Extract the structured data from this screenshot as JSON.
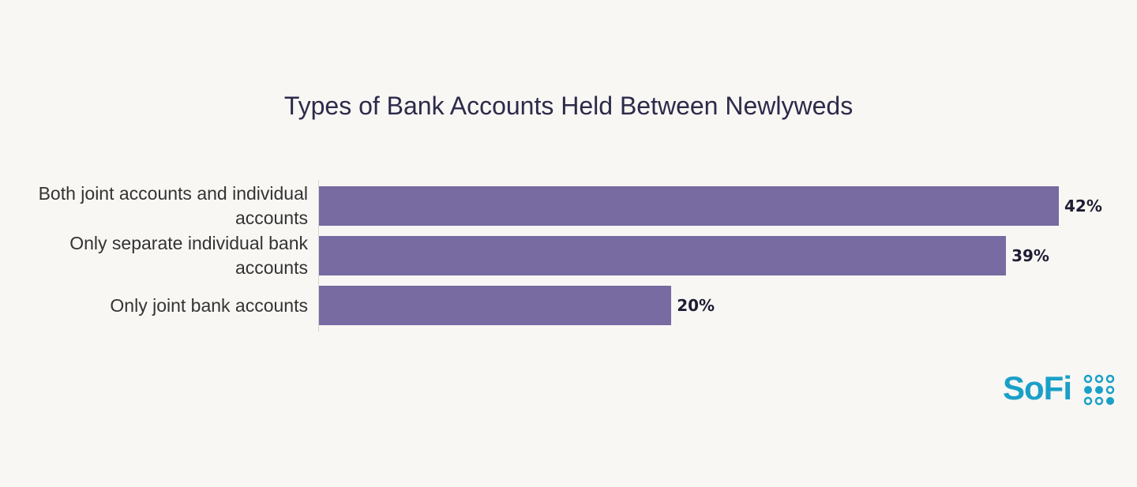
{
  "chart_data": {
    "type": "bar",
    "orientation": "horizontal",
    "title": "Types of Bank Accounts Held Between Newlyweds",
    "categories": [
      "Both joint accounts and individual accounts",
      "Only separate individual bank accounts",
      "Only joint bank accounts"
    ],
    "values": [
      42,
      39,
      20
    ],
    "value_labels": [
      "42%",
      "39%",
      "20%"
    ],
    "color": "#776ba2"
  },
  "brand": "SoFi"
}
